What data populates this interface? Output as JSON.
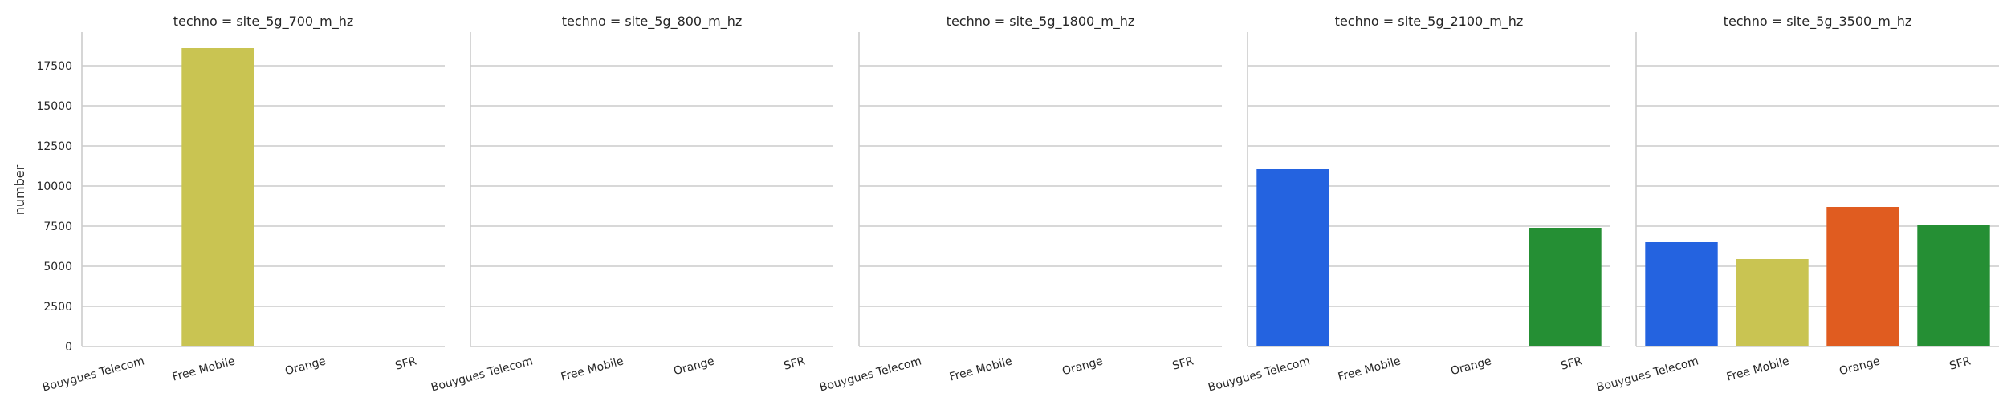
{
  "chart_data": {
    "type": "bar",
    "ylabel": "number",
    "ylim": [
      0,
      19600
    ],
    "yticks": [
      0,
      2500,
      5000,
      7500,
      10000,
      12500,
      15000,
      17500
    ],
    "grid": "horizontal",
    "categories": [
      "Bouygues Telecom",
      "Free Mobile",
      "Orange",
      "SFR"
    ],
    "category_colors": [
      "#2463e0",
      "#c9c452",
      "#e05c20",
      "#258f34"
    ],
    "panels": [
      {
        "title": "techno = site_5g_700_m_hz",
        "values": [
          0,
          18600,
          0,
          0
        ]
      },
      {
        "title": "techno = site_5g_800_m_hz",
        "values": [
          0,
          0,
          0,
          0
        ]
      },
      {
        "title": "techno = site_5g_1800_m_hz",
        "values": [
          0,
          0,
          0,
          0
        ]
      },
      {
        "title": "techno = site_5g_2100_m_hz",
        "values": [
          11050,
          0,
          0,
          7400
        ]
      },
      {
        "title": "techno = site_5g_3500_m_hz",
        "values": [
          6500,
          5450,
          8700,
          7600
        ]
      }
    ]
  }
}
